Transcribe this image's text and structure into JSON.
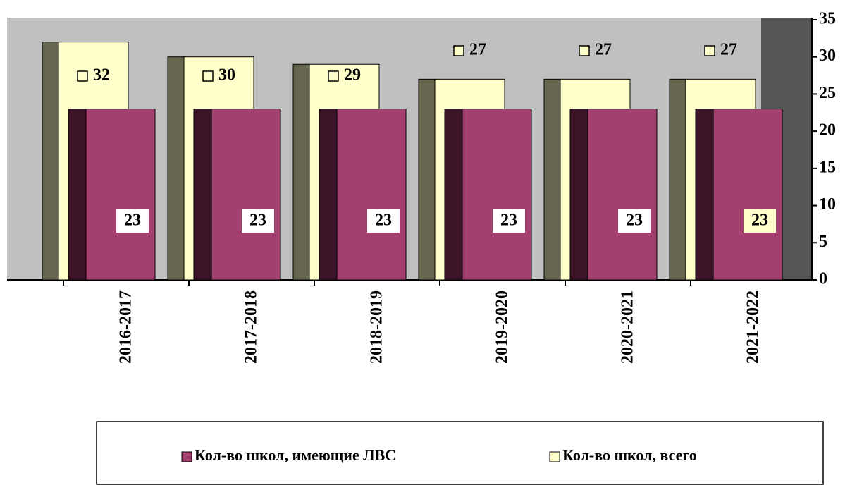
{
  "chart_data": {
    "type": "bar3d",
    "categories": [
      "2016-2017",
      "2017-2018",
      "2018-2019",
      "2019-2020",
      "2020-2021",
      "2021-2022"
    ],
    "series": [
      {
        "name": "Кол-во школ, имеющие ЛВС",
        "color": "#a3406f",
        "values": [
          23,
          23,
          23,
          23,
          23,
          23
        ]
      },
      {
        "name": "Кол-во школ, всего",
        "color": "#ffffcc",
        "values": [
          32,
          30,
          29,
          27,
          27,
          27
        ]
      }
    ],
    "ylim": [
      0,
      35
    ],
    "yticks": [
      0,
      5,
      10,
      15,
      20,
      25,
      30,
      35
    ],
    "legend": "bottom"
  }
}
